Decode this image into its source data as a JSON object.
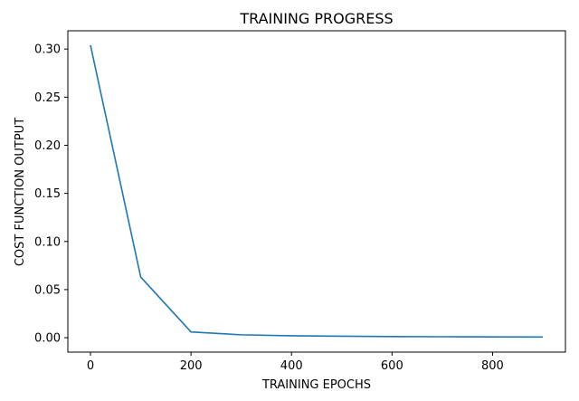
{
  "chart_data": {
    "type": "line",
    "title": "TRAINING PROGRESS",
    "xlabel": "TRAINING EPOCHS",
    "ylabel": "COST FUNCTION OUTPUT",
    "xlim": [
      -45,
      945
    ],
    "ylim": [
      -0.015,
      0.319
    ],
    "xticks": [
      0,
      200,
      400,
      600,
      800
    ],
    "xtick_labels": [
      "0",
      "200",
      "400",
      "600",
      "800"
    ],
    "yticks": [
      0.0,
      0.05,
      0.1,
      0.15,
      0.2,
      0.25,
      0.3
    ],
    "ytick_labels": [
      "0.00",
      "0.05",
      "0.10",
      "0.15",
      "0.20",
      "0.25",
      "0.30"
    ],
    "grid": false,
    "series": [
      {
        "color": "#1f77b4",
        "x": [
          0,
          100,
          200,
          300,
          400,
          500,
          600,
          700,
          800,
          900
        ],
        "y": [
          0.304,
          0.063,
          0.006,
          0.003,
          0.002,
          0.0015,
          0.0012,
          0.001,
          0.0008,
          0.0007
        ]
      }
    ]
  }
}
